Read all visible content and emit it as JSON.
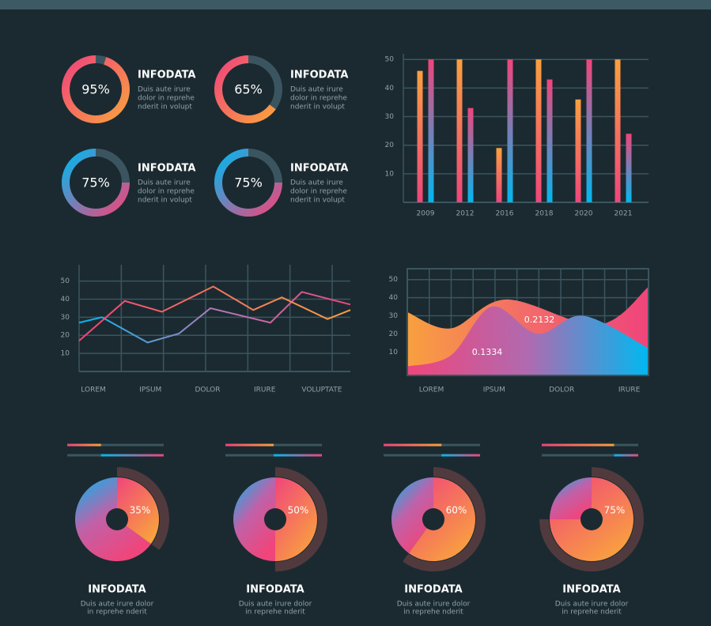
{
  "chart_data": [
    {
      "type": "donut",
      "title": "INFODATA",
      "text": [
        "Duis aute irure",
        "dolor in reprehe",
        "nderit in volupt"
      ],
      "value": 95,
      "value_label": "95%",
      "gradient": [
        "#f0457b",
        "#f9a03f"
      ]
    },
    {
      "type": "donut",
      "title": "INFODATA",
      "text": [
        "Duis aute irure",
        "dolor in reprehe",
        "nderit in volupt"
      ],
      "value": 65,
      "value_label": "65%",
      "gradient": [
        "#f0457b",
        "#f9a03f"
      ]
    },
    {
      "type": "donut",
      "title": "INFODATA",
      "text": [
        "Duis aute irure",
        "dolor in reprehe",
        "nderit in volupt"
      ],
      "value": 75,
      "value_label": "75%",
      "gradient": [
        "#00b8f0",
        "#f0457b"
      ]
    },
    {
      "type": "donut",
      "title": "INFODATA",
      "text": [
        "Duis aute irure",
        "dolor in reprehe",
        "nderit in volupt"
      ],
      "value": 75,
      "value_label": "75%",
      "gradient": [
        "#00b8f0",
        "#f0457b"
      ]
    },
    {
      "type": "bar",
      "categories": [
        "2009",
        "2012",
        "2016",
        "2018",
        "2020",
        "2021"
      ],
      "series": [
        {
          "gradient": [
            "#f9a03f",
            "#f0457b"
          ],
          "values": [
            46,
            50,
            19,
            50,
            36,
            50
          ]
        },
        {
          "gradient": [
            "#f0457b",
            "#00b8f0"
          ],
          "values": [
            50,
            33,
            50,
            43,
            50,
            24
          ]
        }
      ],
      "ylim": [
        0,
        52
      ],
      "yticks": [
        10,
        20,
        30,
        40,
        50
      ],
      "grid": true
    },
    {
      "type": "line",
      "series": [
        {
          "gradient": [
            "#00b8f0",
            "#b07ab8",
            "#f0457b"
          ],
          "x": [
            0,
            0.8,
            2.4,
            3.5,
            4.6,
            6.7,
            7.8,
            9.5
          ],
          "values": [
            27,
            30,
            16,
            21,
            35,
            27,
            44,
            37
          ]
        },
        {
          "gradient": [
            "#f0457b",
            "#f9a03f"
          ],
          "x": [
            0,
            1.6,
            2.9,
            4.7,
            6.1,
            7.1,
            8.7,
            9.5
          ],
          "values": [
            17,
            39,
            33,
            47,
            34,
            41,
            29,
            34
          ]
        }
      ],
      "xlim": [
        0,
        9.5
      ],
      "xticks": [
        {
          "value": 0.5,
          "label": "LOREM"
        },
        {
          "value": 2.5,
          "label": "IPSUM"
        },
        {
          "value": 4.5,
          "label": "DOLOR"
        },
        {
          "value": 6.5,
          "label": "IRURE"
        },
        {
          "value": 8.5,
          "label": "VOLUPTATE"
        }
      ],
      "ylim": [
        0,
        59
      ],
      "yticks": [
        10,
        20,
        30,
        40,
        50
      ],
      "grid": true
    },
    {
      "type": "area",
      "series": [
        {
          "gradient": [
            "#f9a03f",
            "#f26a6a",
            "#f0457b"
          ],
          "x": [
            0,
            1.8,
            4.1,
            7.9,
            10
          ],
          "values": [
            32,
            23,
            39,
            25,
            46
          ]
        },
        {
          "gradient": [
            "#f0457b",
            "#b06ab0",
            "#00b8f0"
          ],
          "x": [
            0,
            1.8,
            3.5,
            5.4,
            7.3,
            10
          ],
          "values": [
            2,
            8,
            35,
            20,
            30,
            12
          ]
        }
      ],
      "annotations": [
        "0.2132",
        "0.1334"
      ],
      "xlim": [
        0,
        10
      ],
      "xticks": [
        {
          "value": 1,
          "label": "LOREM"
        },
        {
          "value": 3.6,
          "label": "IPSUM"
        },
        {
          "value": 6.4,
          "label": "DOLOR"
        },
        {
          "value": 9.2,
          "label": "IRURE"
        }
      ],
      "ylim": [
        -3,
        56
      ],
      "yticks": [
        10,
        20,
        30,
        40,
        50
      ],
      "grid": true
    },
    {
      "type": "pie",
      "title": "INFODATA",
      "text": [
        "Duis aute irure dolor",
        "in reprehe nderit"
      ],
      "value": 35,
      "value_label": "35%"
    },
    {
      "type": "pie",
      "title": "INFODATA",
      "text": [
        "Duis aute irure dolor",
        "in reprehe nderit"
      ],
      "value": 50,
      "value_label": "50%"
    },
    {
      "type": "pie",
      "title": "INFODATA",
      "text": [
        "Duis aute irure dolor",
        "in reprehe nderit"
      ],
      "value": 60,
      "value_label": "60%"
    },
    {
      "type": "pie",
      "title": "INFODATA",
      "text": [
        "Duis aute irure dolor",
        "in reprehe nderit"
      ],
      "value": 75,
      "value_label": "75%"
    }
  ]
}
